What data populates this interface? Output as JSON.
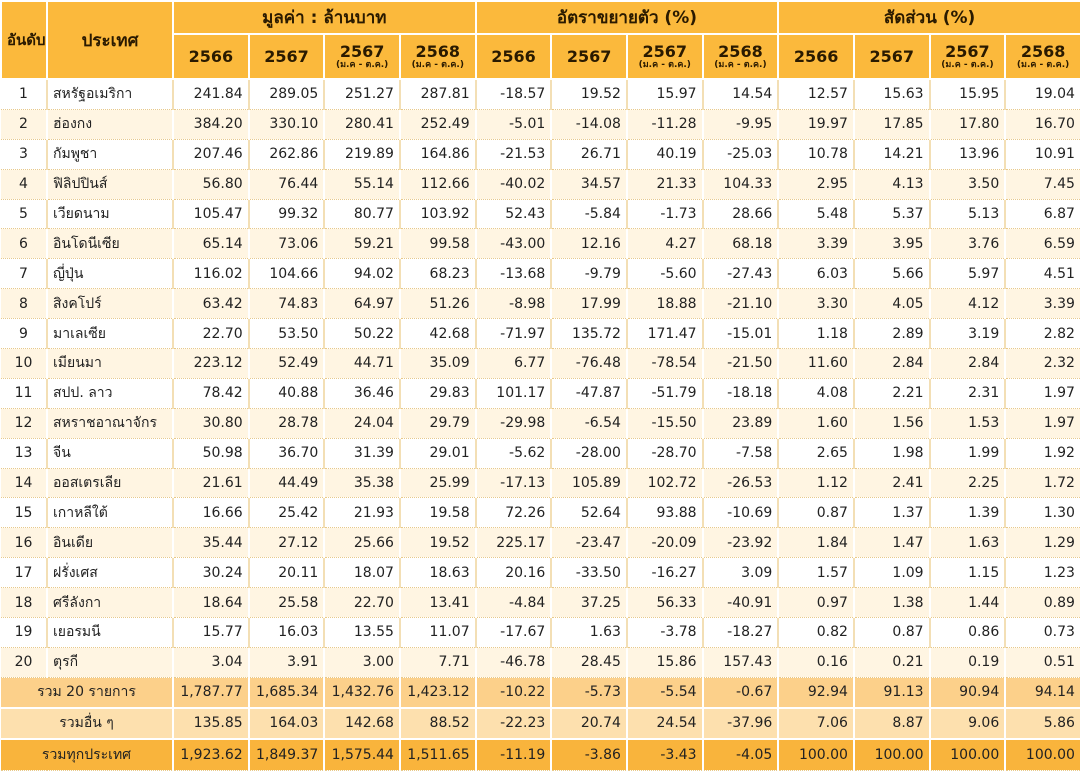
{
  "header": {
    "rank": "อันดับ ที่",
    "country": "ประเทศ",
    "groups": [
      "มูลค่า : ล้านบาท",
      "อัตราขยายตัว (%)",
      "สัดส่วน (%)"
    ],
    "years": [
      {
        "year": "2566",
        "sub": ""
      },
      {
        "year": "2567",
        "sub": ""
      },
      {
        "year": "2567",
        "sub": "(ม.ค - ต.ค.)"
      },
      {
        "year": "2568",
        "sub": "(ม.ค - ต.ค.)"
      }
    ]
  },
  "rows": [
    {
      "rank": "1",
      "country": "สหรัฐอเมริกา",
      "values": [
        "241.84",
        "289.05",
        "251.27",
        "287.81",
        "-18.57",
        "19.52",
        "15.97",
        "14.54",
        "12.57",
        "15.63",
        "15.95",
        "19.04"
      ]
    },
    {
      "rank": "2",
      "country": "ฮ่องกง",
      "values": [
        "384.20",
        "330.10",
        "280.41",
        "252.49",
        "-5.01",
        "-14.08",
        "-11.28",
        "-9.95",
        "19.97",
        "17.85",
        "17.80",
        "16.70"
      ]
    },
    {
      "rank": "3",
      "country": "กัมพูชา",
      "values": [
        "207.46",
        "262.86",
        "219.89",
        "164.86",
        "-21.53",
        "26.71",
        "40.19",
        "-25.03",
        "10.78",
        "14.21",
        "13.96",
        "10.91"
      ]
    },
    {
      "rank": "4",
      "country": "ฟิลิปปินส์",
      "values": [
        "56.80",
        "76.44",
        "55.14",
        "112.66",
        "-40.02",
        "34.57",
        "21.33",
        "104.33",
        "2.95",
        "4.13",
        "3.50",
        "7.45"
      ]
    },
    {
      "rank": "5",
      "country": "เวียดนาม",
      "values": [
        "105.47",
        "99.32",
        "80.77",
        "103.92",
        "52.43",
        "-5.84",
        "-1.73",
        "28.66",
        "5.48",
        "5.37",
        "5.13",
        "6.87"
      ]
    },
    {
      "rank": "6",
      "country": "อินโดนีเซีย",
      "values": [
        "65.14",
        "73.06",
        "59.21",
        "99.58",
        "-43.00",
        "12.16",
        "4.27",
        "68.18",
        "3.39",
        "3.95",
        "3.76",
        "6.59"
      ]
    },
    {
      "rank": "7",
      "country": "ญี่ปุ่น",
      "values": [
        "116.02",
        "104.66",
        "94.02",
        "68.23",
        "-13.68",
        "-9.79",
        "-5.60",
        "-27.43",
        "6.03",
        "5.66",
        "5.97",
        "4.51"
      ]
    },
    {
      "rank": "8",
      "country": "สิงคโปร์",
      "values": [
        "63.42",
        "74.83",
        "64.97",
        "51.26",
        "-8.98",
        "17.99",
        "18.88",
        "-21.10",
        "3.30",
        "4.05",
        "4.12",
        "3.39"
      ]
    },
    {
      "rank": "9",
      "country": "มาเลเซีย",
      "values": [
        "22.70",
        "53.50",
        "50.22",
        "42.68",
        "-71.97",
        "135.72",
        "171.47",
        "-15.01",
        "1.18",
        "2.89",
        "3.19",
        "2.82"
      ]
    },
    {
      "rank": "10",
      "country": "เมียนมา",
      "values": [
        "223.12",
        "52.49",
        "44.71",
        "35.09",
        "6.77",
        "-76.48",
        "-78.54",
        "-21.50",
        "11.60",
        "2.84",
        "2.84",
        "2.32"
      ]
    },
    {
      "rank": "11",
      "country": "สปป. ลาว",
      "values": [
        "78.42",
        "40.88",
        "36.46",
        "29.83",
        "101.17",
        "-47.87",
        "-51.79",
        "-18.18",
        "4.08",
        "2.21",
        "2.31",
        "1.97"
      ]
    },
    {
      "rank": "12",
      "country": "สหราชอาณาจักร",
      "values": [
        "30.80",
        "28.78",
        "24.04",
        "29.79",
        "-29.98",
        "-6.54",
        "-15.50",
        "23.89",
        "1.60",
        "1.56",
        "1.53",
        "1.97"
      ]
    },
    {
      "rank": "13",
      "country": "จีน",
      "values": [
        "50.98",
        "36.70",
        "31.39",
        "29.01",
        "-5.62",
        "-28.00",
        "-28.70",
        "-7.58",
        "2.65",
        "1.98",
        "1.99",
        "1.92"
      ]
    },
    {
      "rank": "14",
      "country": "ออสเตรเลีย",
      "values": [
        "21.61",
        "44.49",
        "35.38",
        "25.99",
        "-17.13",
        "105.89",
        "102.72",
        "-26.53",
        "1.12",
        "2.41",
        "2.25",
        "1.72"
      ]
    },
    {
      "rank": "15",
      "country": "เกาหลีใต้",
      "values": [
        "16.66",
        "25.42",
        "21.93",
        "19.58",
        "72.26",
        "52.64",
        "93.88",
        "-10.69",
        "0.87",
        "1.37",
        "1.39",
        "1.30"
      ]
    },
    {
      "rank": "16",
      "country": "อินเดีย",
      "values": [
        "35.44",
        "27.12",
        "25.66",
        "19.52",
        "225.17",
        "-23.47",
        "-20.09",
        "-23.92",
        "1.84",
        "1.47",
        "1.63",
        "1.29"
      ]
    },
    {
      "rank": "17",
      "country": "ฝรั่งเศส",
      "values": [
        "30.24",
        "20.11",
        "18.07",
        "18.63",
        "20.16",
        "-33.50",
        "-16.27",
        "3.09",
        "1.57",
        "1.09",
        "1.15",
        "1.23"
      ]
    },
    {
      "rank": "18",
      "country": "ศรีลังกา",
      "values": [
        "18.64",
        "25.58",
        "22.70",
        "13.41",
        "-4.84",
        "37.25",
        "56.33",
        "-40.91",
        "0.97",
        "1.38",
        "1.44",
        "0.89"
      ]
    },
    {
      "rank": "19",
      "country": "เยอรมนี",
      "values": [
        "15.77",
        "16.03",
        "13.55",
        "11.07",
        "-17.67",
        "1.63",
        "-3.78",
        "-18.27",
        "0.82",
        "0.87",
        "0.86",
        "0.73"
      ]
    },
    {
      "rank": "20",
      "country": "ตุรกี",
      "values": [
        "3.04",
        "3.91",
        "3.00",
        "7.71",
        "-46.78",
        "28.45",
        "15.86",
        "157.43",
        "0.16",
        "0.21",
        "0.19",
        "0.51"
      ]
    }
  ],
  "summary": [
    {
      "label": "รวม 20 รายการ",
      "values": [
        "1,787.77",
        "1,685.34",
        "1,432.76",
        "1,423.12",
        "-10.22",
        "-5.73",
        "-5.54",
        "-0.67",
        "92.94",
        "91.13",
        "90.94",
        "94.14"
      ]
    },
    {
      "label": "รวมอื่น ๆ",
      "values": [
        "135.85",
        "164.03",
        "142.68",
        "88.52",
        "-22.23",
        "20.74",
        "24.54",
        "-37.96",
        "7.06",
        "8.87",
        "9.06",
        "5.86"
      ]
    },
    {
      "label": "รวมทุกประเทศ",
      "values": [
        "1,923.62",
        "1,849.37",
        "1,575.44",
        "1,511.65",
        "-11.19",
        "-3.86",
        "-3.43",
        "-4.05",
        "100.00",
        "100.00",
        "100.00",
        "100.00"
      ]
    }
  ]
}
